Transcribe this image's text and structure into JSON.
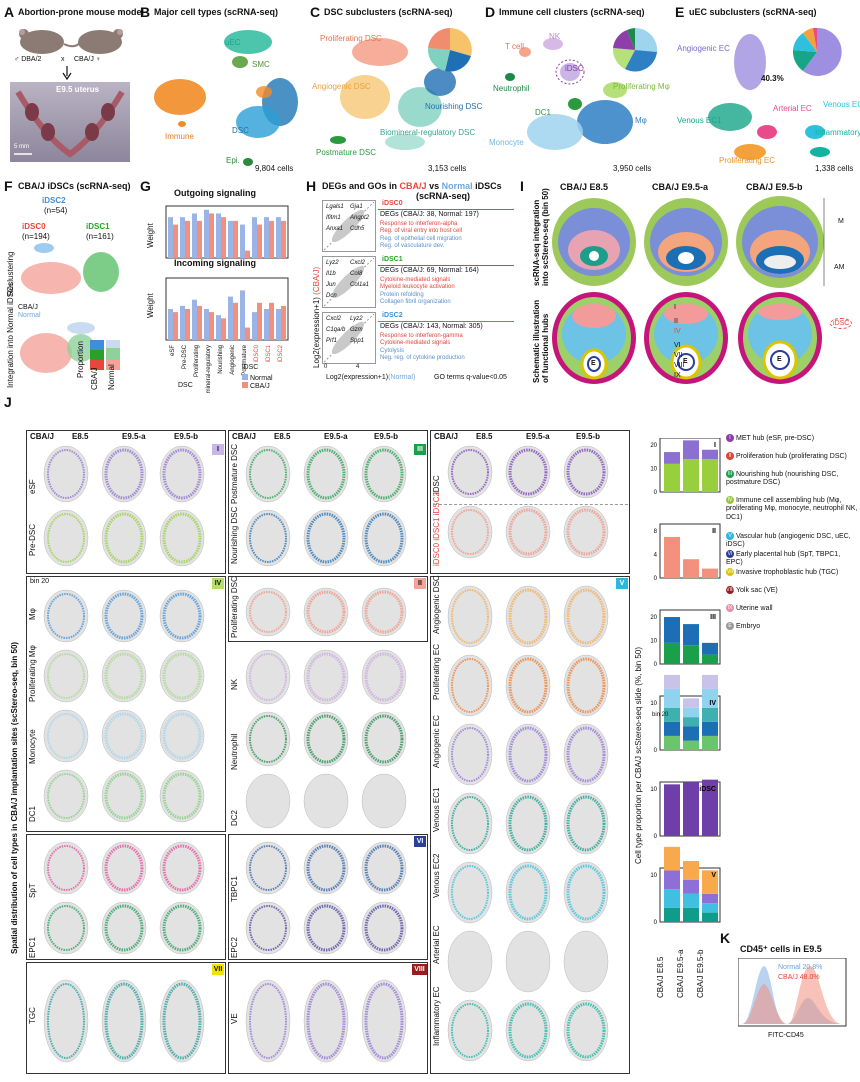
{
  "panelA": {
    "label": "A",
    "title": "Abortion-prone mouse model",
    "male": "♂ DBA/2",
    "cross": "x",
    "female": "CBA/J ♀",
    "uterus": "E9.5 uterus",
    "scale": "5 mm"
  },
  "panelB": {
    "label": "B",
    "title": "Major cell types (scRNA-seq)",
    "uEC": "uEC",
    "SMC": "SMC",
    "immune": "Immune",
    "dsc": "DSC",
    "epi": "Epi.",
    "count": "9,804 cells"
  },
  "panelC": {
    "label": "C",
    "title": "DSC subclusters (scRNA-seq)",
    "prolif": "Proliferating DSC",
    "angio": "Angiogenic DSC",
    "nourish": "Nourishing DSC",
    "biomin": "Biomineral-regulatory DSC",
    "postmat": "Postmature DSC",
    "count": "3,153 cells"
  },
  "panelD": {
    "label": "D",
    "title": "Immune cell clusters (scRNA-seq)",
    "nk": "NK",
    "tcell": "T cell",
    "idsc": "iDSC",
    "neut": "Neutrophil",
    "prolmf": "Proliferating Mφ",
    "dc1": "DC1",
    "mono": "Monocyte",
    "mf": "Mφ",
    "count": "3,950 cells"
  },
  "panelE": {
    "label": "E",
    "title": "uEC subclusters (scRNA-seq)",
    "angio": "Angiogenic EC",
    "pct": "40.3%",
    "venous1": "Venous EC1",
    "arterial": "Arterial EC",
    "venous2": "Venous EC2",
    "inflam": "Inflammatory EC",
    "prolif": "Proliferating EC",
    "count": "1,338 cells"
  },
  "panelF": {
    "label": "F",
    "title": "CBA/J iDSCs (scRNA-seq)",
    "idsc2": "iDSC2",
    "idsc2n": "(n=54)",
    "idsc0": "iDSC0",
    "idsc0n": "(n=194)",
    "idsc1": "iDSC1",
    "idsc1n": "(n=161)",
    "recl": "Reclustering",
    "integ": "Integration into Normal iDSCs",
    "cbaj": "CBA/J",
    "normal": "Normal",
    "prop": "Proportion",
    "x1": "CBA/J",
    "x2": "Normal"
  },
  "panelG": {
    "label": "G",
    "out": "Outgoing signaling",
    "inc": "Incoming signaling",
    "ylab": "Weight",
    "cats": [
      "eSF",
      "Pre-DSC",
      "Proliferating",
      "Biomineral-regulatory",
      "Nourishing",
      "Angiogenic",
      "Postmature",
      "iDSC0",
      "iDSC1",
      "iDSC2"
    ],
    "dsc": "DSC",
    "idsc": "iDSC",
    "leg_normal": "Normal",
    "leg_cbaj": "CBA/J",
    "yticks_top": [
      "0",
      "10"
    ],
    "yticks_bot": [
      "0",
      "10",
      "20"
    ]
  },
  "panelH": {
    "label": "H",
    "title1": "DEGs and GOs in",
    "t_cbaj": "CBA/J",
    "t_vs": "vs",
    "t_normal": "Normal",
    "t_idsc": "iDSCs",
    "title2": "(scRNA-seq)",
    "ylab": "Log2(expression+1)",
    "ylab_cbaj": "(CBA/J)",
    "xlab": "Log2(expression+1)",
    "xlab_normal": "(Normal)",
    "note": "GO terms q-value<0.05",
    "blocks": [
      {
        "name": "iDSC0",
        "color": "#e8453c",
        "degs": "DEGs (CBA/J: 38, Normal: 197)",
        "genes": [
          "Lgals1",
          "Gja1",
          "Ifitm1",
          "Angpt2",
          "Anxa1",
          "Cdh5"
        ],
        "up": [
          "Response to interferon-alpha",
          "Reg. of viral entry into host cell"
        ],
        "down": [
          "Reg. of epithelial cell migration",
          "Reg. of vasculature dev."
        ]
      },
      {
        "name": "iDSC1",
        "color": "#2aa02b",
        "degs": "DEGs (CBA/J: 69, Normal: 164)",
        "genes": [
          "Lyz2",
          "Cxcl2",
          "Il1b",
          "Col8",
          "Jun",
          "Col1a1",
          "Dcn"
        ],
        "up": [
          "Cytokine-mediated signals",
          "Myeloid leukocyte activation"
        ],
        "down": [
          "Protein refolding",
          "Collagen fibril organization"
        ]
      },
      {
        "name": "iDSC2",
        "color": "#3f8fd8",
        "degs": "DEGs (CBA/J: 143, Normal: 305)",
        "genes": [
          "Cxcl2",
          "Lyz2",
          "C1qa/b",
          "Gzm",
          "Prf1",
          "Spp1"
        ],
        "up": [
          "Response to interferon-gamma",
          "Cytokine-mediated signals"
        ],
        "down": [
          "Cytolysis",
          "Neg. reg. of cytokine production"
        ]
      }
    ],
    "ticks": [
      "0",
      "4"
    ]
  },
  "panelI": {
    "label": "I",
    "cols": [
      "CBA/J E8.5",
      "CBA/J E9.5-a",
      "CBA/J E9.5-b"
    ],
    "row1": "scRNA-seq integration into scStereo-seq (bin 50)",
    "row2": "Schematic illustration of functional hubs",
    "m": "M",
    "am": "AM",
    "romans": [
      "I",
      "II",
      "IV",
      "III",
      "V",
      "VI",
      "VII",
      "VIII",
      "IX"
    ],
    "e": "E",
    "idsc": "iDSC"
  },
  "panelJ": {
    "label": "J",
    "ylab": "Spatial distribution of cell types in CBA/J implantation sites (scStereo-seq, bin 50)",
    "cols": [
      "CBA/J",
      "E8.5",
      "E9.5-a",
      "E9.5-b"
    ],
    "hubI": {
      "tag": "I",
      "rows": [
        "eSF",
        "Pre-DSC"
      ]
    },
    "hubIV": {
      "tag": "IV",
      "bin": "bin 20",
      "rows": [
        "Mφ",
        "Proliferating Mφ",
        "Monocyte",
        "DC1"
      ]
    },
    "hubIII": {
      "tag": "III",
      "rows": [
        "Postmature DSC",
        "Nourishing DSC"
      ]
    },
    "hubII": {
      "tag": "II",
      "rows": [
        "Proliferating DSC"
      ]
    },
    "hubIVb": {
      "rows": [
        "NK",
        "Neutrophil",
        "DC2"
      ]
    },
    "hubVI": {
      "tag": "VI",
      "rows": [
        "SpT",
        "EPC1",
        "TBPC1",
        "EPC2"
      ]
    },
    "hubVII": {
      "tag": "VII",
      "rows": [
        "TGC"
      ]
    },
    "hubVIII": {
      "tag": "VIII",
      "rows": [
        "VE"
      ]
    },
    "iDSCcol": {
      "rows": [
        "iDSC",
        "iDSC0 iDSC1 iDSC2"
      ]
    },
    "hubV": {
      "tag": "V",
      "rows": [
        "Angiogenic DSC",
        "Proliferating EC",
        "Angiogenic EC",
        "Venous EC1",
        "Venous EC2",
        "Arterial EC",
        "Inflammatory EC"
      ]
    }
  },
  "panelJbars": {
    "ylab": "Cell type proportion per CBA/J scStereo-seq slide (%, bin 50)",
    "xcats": [
      "CBA/J E8.5",
      "CBA/J E9.5-a",
      "CBA/J E9.5-b"
    ],
    "bin20": "bin 20",
    "idsc": "iDSC",
    "charts": [
      {
        "tag": "I",
        "ticks": [
          "0",
          "10",
          "20"
        ],
        "stacks": [
          [
            12,
            5
          ],
          [
            14,
            8
          ],
          [
            14,
            4
          ]
        ],
        "colors": [
          "#97d03c",
          "#8b6fd1"
        ]
      },
      {
        "tag": "II",
        "ticks": [
          "0",
          "4",
          "8"
        ],
        "stacks": [
          [
            7
          ],
          [
            3.2
          ],
          [
            1.6
          ]
        ],
        "colors": [
          "#f4907e"
        ]
      },
      {
        "tag": "III",
        "ticks": [
          "0",
          "10",
          "20"
        ],
        "stacks": [
          [
            9,
            11
          ],
          [
            8,
            9
          ],
          [
            4,
            5
          ]
        ],
        "colors": [
          "#1aa04b",
          "#1c6fb4"
        ]
      },
      {
        "tag": "IV",
        "ticks": [
          "0",
          "10"
        ],
        "stacks": [
          [
            3,
            3,
            3,
            4,
            3
          ],
          [
            2,
            3,
            2,
            2,
            2
          ],
          [
            3,
            3,
            3,
            4,
            3
          ]
        ],
        "colors": [
          "#6cc46c",
          "#1c6fb4",
          "#3fb0b0",
          "#8fd3ef",
          "#c9c3ea"
        ]
      },
      {
        "tag": "iDSC",
        "ticks": [
          "0",
          "10"
        ],
        "stacks": [
          [
            11
          ],
          [
            11.5
          ],
          [
            12
          ]
        ],
        "colors": [
          "#6e3fa8"
        ]
      },
      {
        "tag": "V",
        "ticks": [
          "0",
          "10"
        ],
        "stacks": [
          [
            3,
            4,
            4,
            5
          ],
          [
            3,
            3,
            3,
            4
          ],
          [
            2,
            2,
            2,
            5
          ]
        ],
        "colors": [
          "#0f9d8a",
          "#3fc0e0",
          "#8e6fd8",
          "#f8a94b"
        ]
      }
    ]
  },
  "legendHubs": [
    {
      "n": "I",
      "text": "MET hub (eSF, pre-DSC)",
      "color": "#8e3ea8"
    },
    {
      "n": "II",
      "text": "Proliferation hub (proliferating DSC)",
      "color": "#e0453c"
    },
    {
      "n": "III",
      "text": "Nourishing hub (nourishing DSC, postmature DSC)",
      "color": "#1aa04b"
    },
    {
      "n": "IV",
      "text": "Immune cell assembling hub (Mφ, proliferating Mφ, monocyte, neutrophil NK, DC1)",
      "color": "#97c83c"
    },
    {
      "n": "V",
      "text": "Vascular hub (angiogenic DSC, uEC, iDSC)",
      "color": "#2ab8e0"
    },
    {
      "n": "VI",
      "text": "Early placental hub (SpT, TBPC1, EPC)",
      "color": "#2a3f9a"
    },
    {
      "n": "VII",
      "text": "Invasive trophoblastic hub (TGC)",
      "color": "#d9c500"
    },
    {
      "n": "VIII",
      "text": "Yolk sac (VE)",
      "color": "#9a1c1c"
    },
    {
      "n": "IX",
      "text": "Uterine wall",
      "color": "#e98fa5"
    },
    {
      "n": "E",
      "text": "Embryo",
      "color": "#999999"
    }
  ],
  "panelK": {
    "label": "K",
    "title": "CD45⁺ cells in E9.5",
    "normal": "Normal 20.8%",
    "cbaj": "CBA/J 48.0%",
    "xlab": "FITC-CD45"
  }
}
